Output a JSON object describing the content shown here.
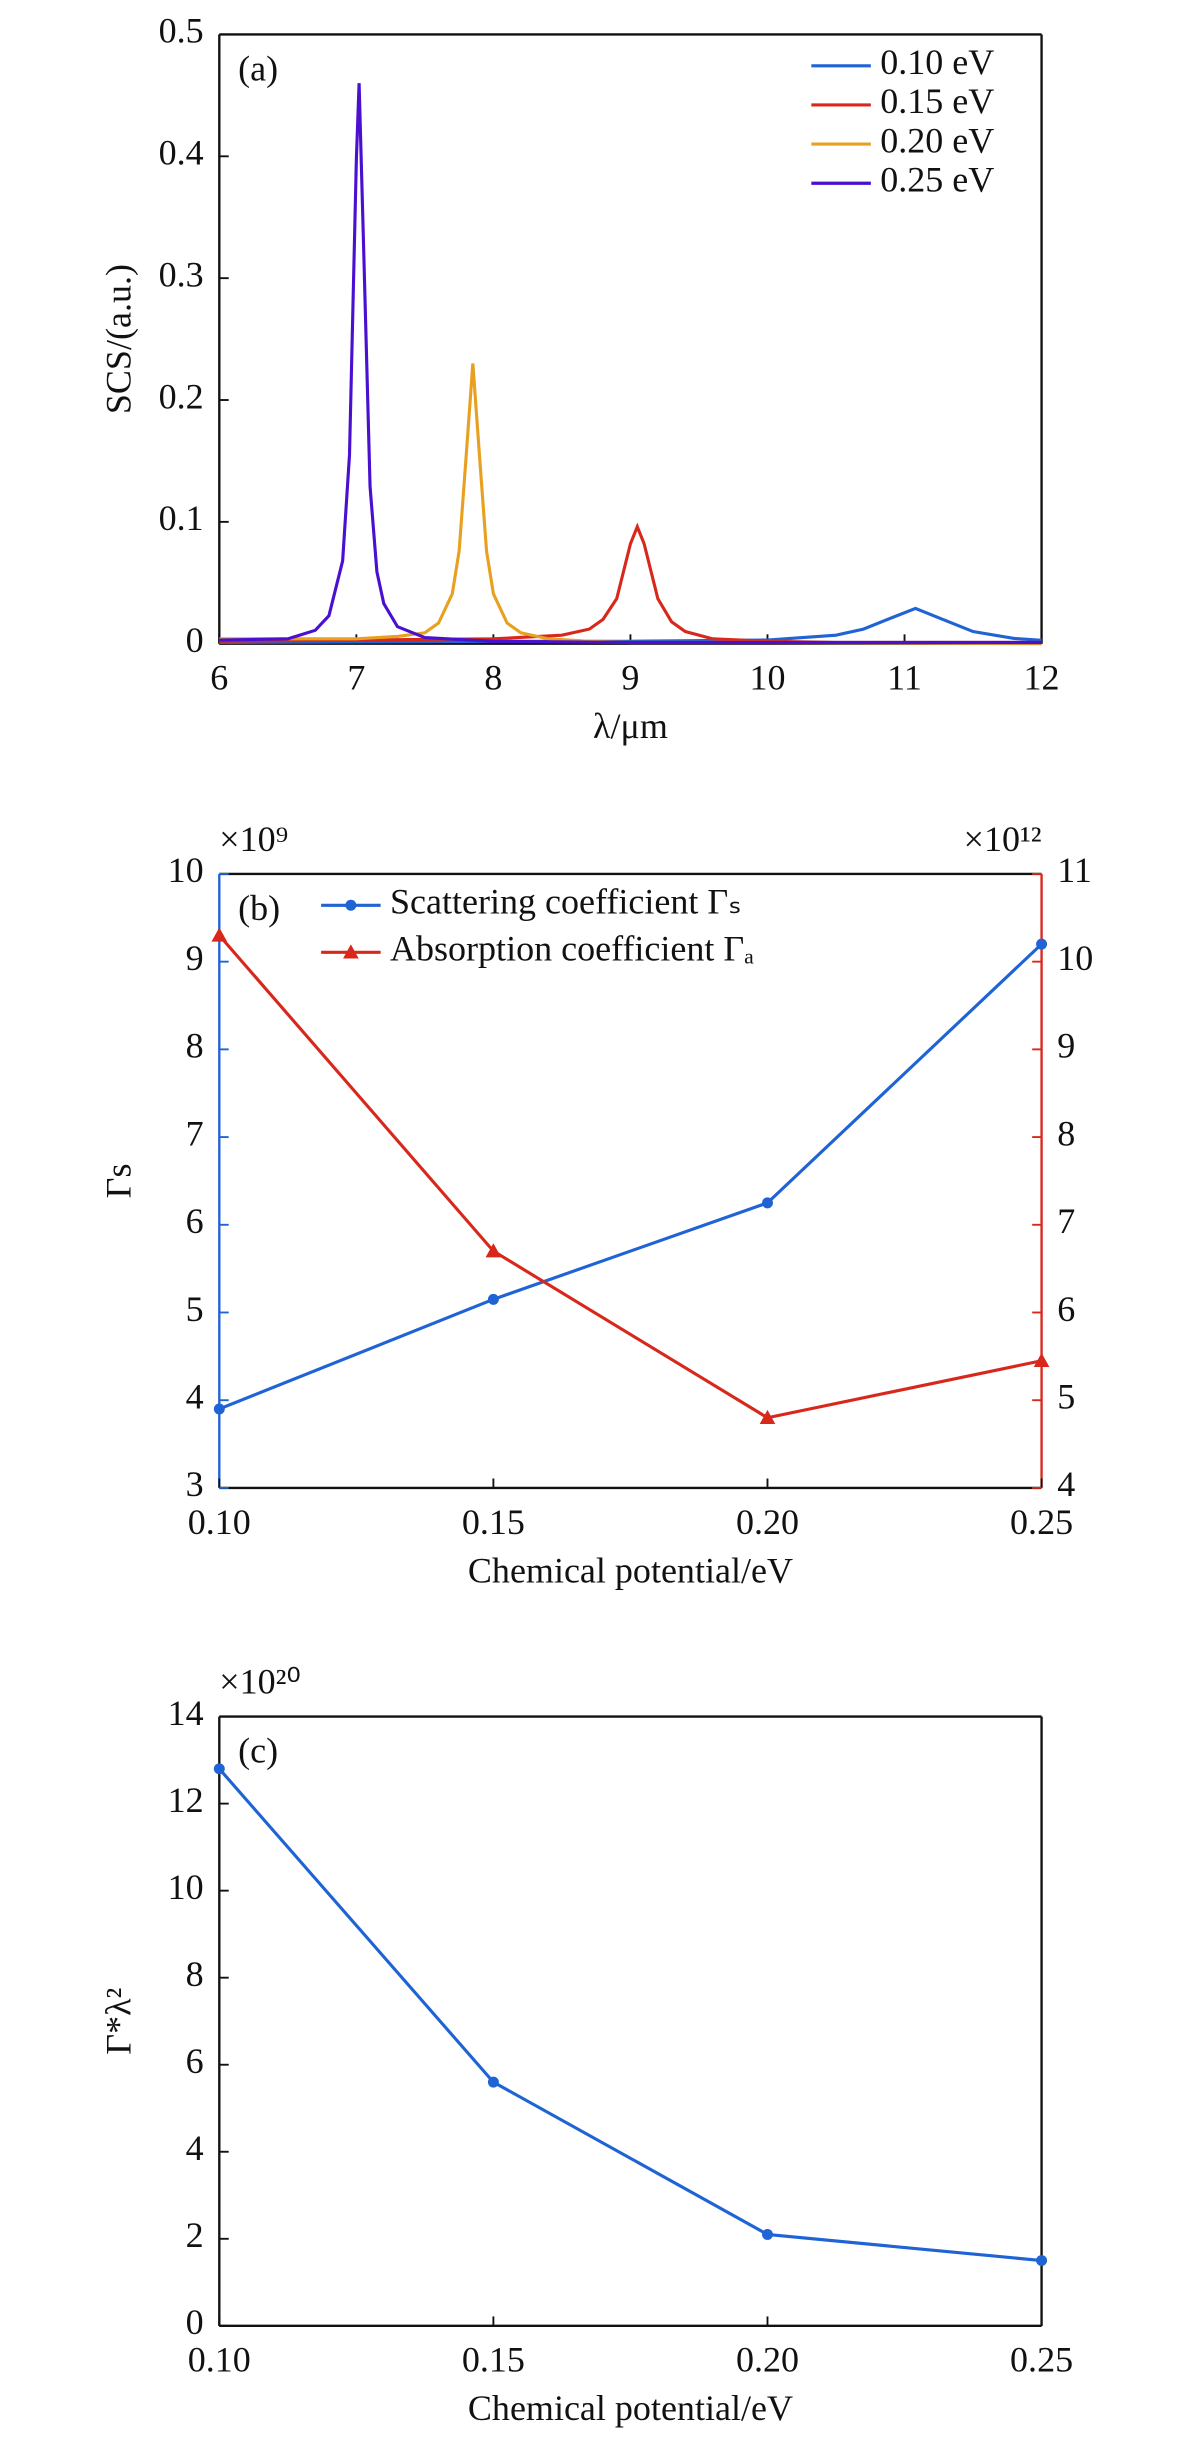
{
  "chart_data": [
    {
      "type": "line",
      "annotation": "(a)",
      "x_label": "λ/μm",
      "y_label": "SCS/(a.u.)",
      "xlim": [
        6,
        12
      ],
      "xticks": [
        6,
        7,
        8,
        9,
        10,
        11,
        12
      ],
      "ylim": [
        0,
        0.5
      ],
      "yticks": [
        0,
        0.1,
        0.2,
        0.3,
        0.4,
        0.5
      ],
      "legend": "upper right",
      "series": [
        {
          "name": "0.10 eV",
          "color": "#1f63d4",
          "x": [
            6,
            8,
            9,
            10,
            10.5,
            10.7,
            10.9,
            11.08,
            11.3,
            11.5,
            11.8,
            12
          ],
          "values": [
            0.001,
            0.002,
            0.002,
            0.003,
            0.007,
            0.012,
            0.021,
            0.029,
            0.019,
            0.01,
            0.0043,
            0.0028
          ]
        },
        {
          "name": "0.15 eV",
          "color": "#d8281c",
          "x": [
            6,
            7,
            8,
            8.5,
            8.7,
            8.8,
            8.9,
            9.0,
            9.05,
            9.1,
            9.2,
            9.3,
            9.4,
            9.6,
            10,
            10.5,
            11,
            12
          ],
          "values": [
            0.002,
            0.003,
            0.004,
            0.007,
            0.012,
            0.02,
            0.037,
            0.082,
            0.096,
            0.082,
            0.037,
            0.018,
            0.01,
            0.004,
            0.002,
            0.001,
            0.001,
            0.001
          ]
        },
        {
          "name": "0.20 eV",
          "color": "#e8a020",
          "x": [
            6,
            7,
            7.3,
            7.5,
            7.6,
            7.7,
            7.75,
            7.8,
            7.85,
            7.9,
            7.95,
            8.0,
            8.1,
            8.2,
            8.4,
            8.7,
            9,
            10,
            12
          ],
          "values": [
            0.004,
            0.004,
            0.006,
            0.009,
            0.017,
            0.041,
            0.076,
            0.152,
            0.23,
            0.152,
            0.076,
            0.041,
            0.017,
            0.009,
            0.004,
            0.002,
            0.001,
            0.001,
            0
          ]
        },
        {
          "name": "0.25 eV",
          "color": "#4a10d0",
          "x": [
            6,
            6.5,
            6.7,
            6.8,
            6.9,
            6.95,
            7.0,
            7.02,
            7.05,
            7.1,
            7.15,
            7.2,
            7.3,
            7.5,
            8,
            9,
            10,
            11,
            12
          ],
          "values": [
            0.003,
            0.004,
            0.011,
            0.023,
            0.068,
            0.155,
            0.397,
            0.46,
            0.338,
            0.129,
            0.059,
            0.033,
            0.014,
            0.005,
            0.002,
            0.001,
            0.001,
            0.001,
            0.001
          ]
        }
      ]
    },
    {
      "type": "line",
      "annotation": "(b)",
      "x_label": "Chemical potential/eV",
      "y_label": "Γs",
      "y_multiplier": "×10⁹",
      "y2_multiplier": "×10¹²",
      "y_color": "#1f63d4",
      "y2_color": "#d8281c",
      "x": [
        0.1,
        0.15,
        0.2,
        0.25
      ],
      "xlim": [
        0.1,
        0.25
      ],
      "xticks": [
        {
          "value": 0.1,
          "label": "0.10"
        },
        {
          "value": 0.15,
          "label": "0.15"
        },
        {
          "value": 0.2,
          "label": "0.20"
        },
        {
          "value": 0.25,
          "label": "0.25"
        }
      ],
      "ylim": [
        3,
        10
      ],
      "yticks": [
        3,
        4,
        5,
        6,
        7,
        8,
        9,
        10
      ],
      "y2lim": [
        4,
        11
      ],
      "y2ticks": [
        4,
        5,
        6,
        7,
        8,
        9,
        10,
        11
      ],
      "legend": "upper left",
      "series": [
        {
          "name": "Scattering coefficient Γₛ",
          "color": "#1f63d4",
          "marker": "circle",
          "values": [
            3.9,
            5.15,
            6.25,
            9.2
          ]
        },
        {
          "name": "Absorption coefficient Γₐ",
          "color": "#d8281c",
          "marker": "triangle",
          "axis": "y2",
          "values": [
            10.3,
            6.7,
            4.8,
            5.45
          ]
        }
      ]
    },
    {
      "type": "line",
      "annotation": "(c)",
      "x_label": "Chemical potential/eV",
      "y_label": "Γ*λ²",
      "y_multiplier": "×10²⁰",
      "x": [
        0.1,
        0.15,
        0.2,
        0.25
      ],
      "xlim": [
        0.1,
        0.25
      ],
      "xticks": [
        {
          "value": 0.1,
          "label": "0.10"
        },
        {
          "value": 0.15,
          "label": "0.15"
        },
        {
          "value": 0.2,
          "label": "0.20"
        },
        {
          "value": 0.25,
          "label": "0.25"
        }
      ],
      "ylim": [
        0,
        14
      ],
      "yticks": [
        0,
        2,
        4,
        6,
        8,
        10,
        12,
        14
      ],
      "series": [
        {
          "color": "#1f63d4",
          "marker": "circle",
          "values": [
            12.8,
            5.6,
            2.1,
            1.5
          ]
        }
      ]
    }
  ]
}
